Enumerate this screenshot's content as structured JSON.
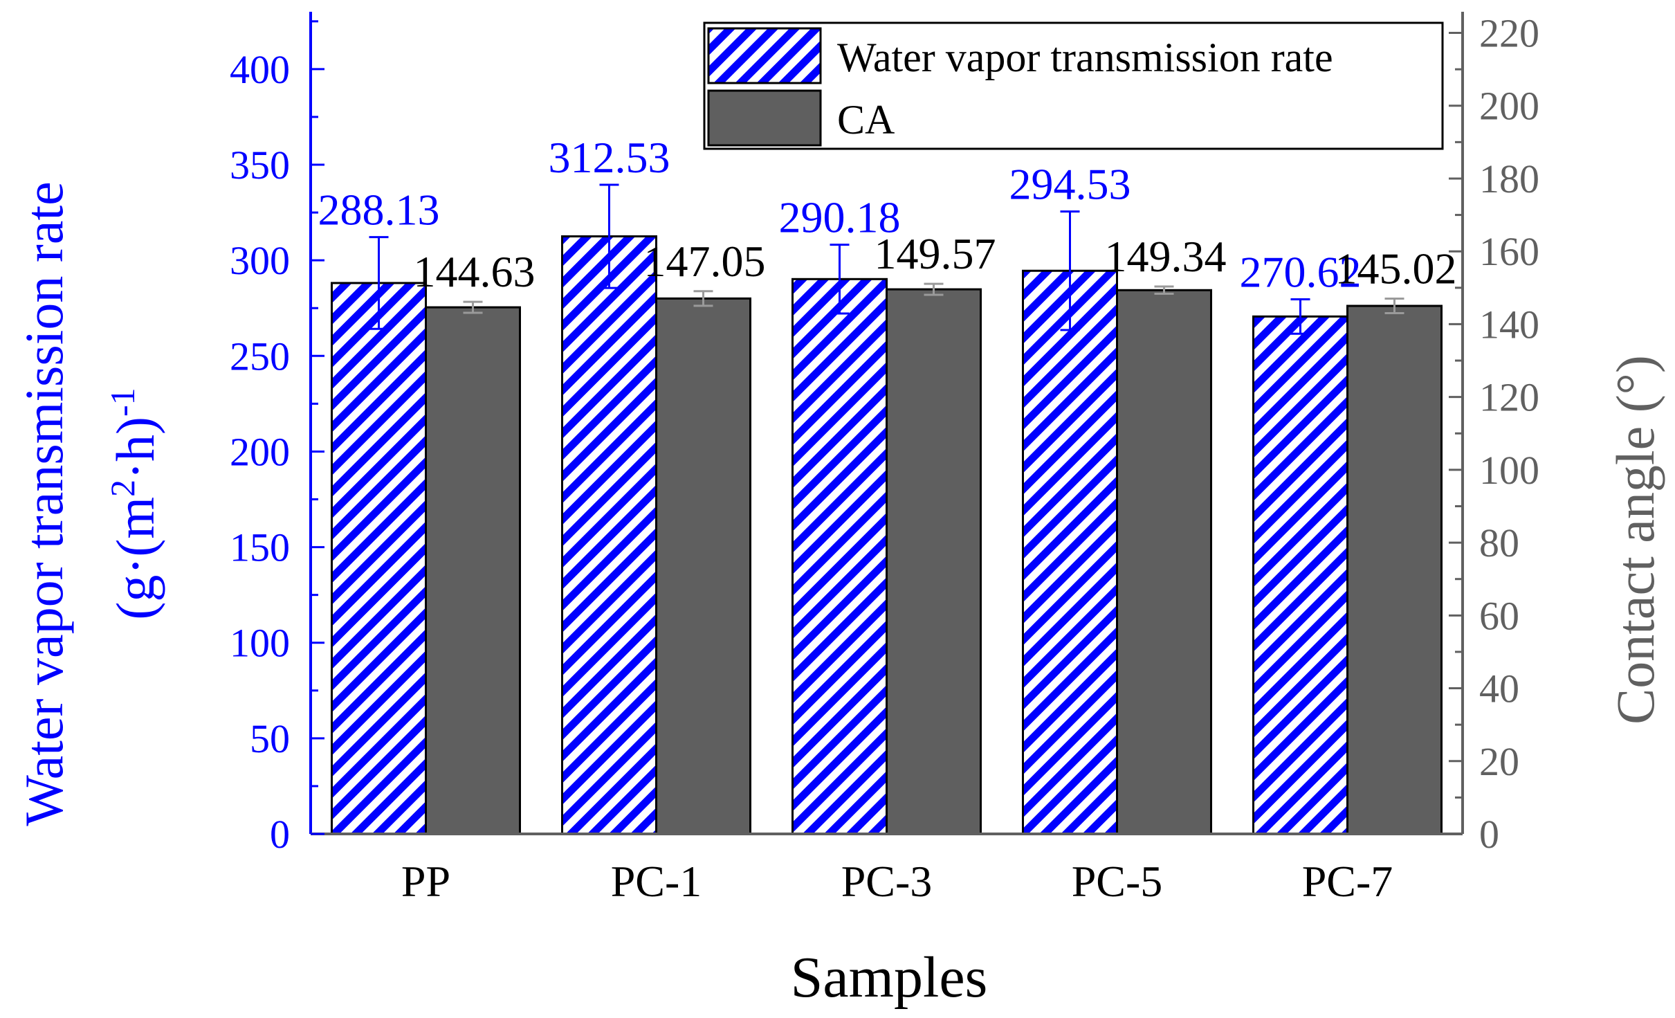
{
  "chart_data": {
    "type": "bar",
    "xlabel": "Samples",
    "categories": [
      "PP",
      "PC-1",
      "PC-3",
      "PC-5",
      "PC-7"
    ],
    "series": [
      {
        "name": "Water vapor transmission rate",
        "axis": "left",
        "values": [
          288.13,
          312.53,
          290.18,
          294.53,
          270.62
        ],
        "value_labels": [
          "288.13",
          "312.53",
          "290.18",
          "294.53",
          "270.62"
        ],
        "errors": [
          24,
          27,
          18,
          31,
          9
        ],
        "color": "#0000ff",
        "pattern": "diagonal-hatch"
      },
      {
        "name": "CA",
        "axis": "right",
        "values": [
          144.63,
          147.05,
          149.57,
          149.34,
          145.02
        ],
        "value_labels": [
          "144.63",
          "147.05",
          "149.57",
          "149.34",
          "145.02"
        ],
        "errors": [
          1.5,
          2.0,
          1.5,
          1.0,
          2.0
        ],
        "color": "#5f5f5f"
      }
    ],
    "y_left": {
      "label_line1": "Water vapor transmission rate",
      "label_line2_prefix": "(g·(m",
      "label_line2_sup": "2",
      "label_line2_mid": "·h)",
      "label_line2_sup2": "-1",
      "ylim": [
        0,
        430
      ],
      "ticks": [
        0,
        50,
        100,
        150,
        200,
        250,
        300,
        350,
        400
      ],
      "color": "#0000ff"
    },
    "y_right": {
      "label": "Contact angle (°)",
      "ylim": [
        0,
        225.8
      ],
      "ticks": [
        0,
        20,
        40,
        60,
        80,
        100,
        120,
        140,
        160,
        180,
        200,
        220
      ],
      "color": "#606060"
    },
    "legend": {
      "position": "top-right",
      "entries": [
        "Water vapor transmission rate",
        "CA"
      ]
    }
  }
}
